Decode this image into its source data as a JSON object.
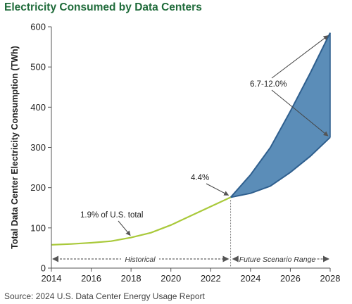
{
  "title": "Electricity Consumed by Data Centers",
  "source": "Source: 2024 U.S. Data Center Energy Usage Report",
  "colors": {
    "title": "#1f6b3a",
    "historical_line": "#a9c93a",
    "scenario_fill": "#5b8db8",
    "scenario_line": "#2f5f8e",
    "axis": "#555555",
    "annotation": "#444444"
  },
  "chart_data": {
    "type": "area",
    "ylabel": "Total Data Center Electricity Consumption (TWh)",
    "xlim": [
      2014,
      2028
    ],
    "ylim": [
      0,
      600
    ],
    "x_ticks": [
      "2014",
      "2016",
      "2018",
      "2020",
      "2022",
      "2024",
      "2026",
      "2028"
    ],
    "y_ticks": [
      "0",
      "100",
      "200",
      "300",
      "400",
      "500",
      "600"
    ],
    "grid": false,
    "historical": {
      "x": [
        2014,
        2015,
        2016,
        2017,
        2018,
        2019,
        2020,
        2021,
        2022,
        2023
      ],
      "y": [
        58,
        60,
        63,
        67,
        76,
        88,
        107,
        130,
        153,
        176
      ]
    },
    "scenario_upper": {
      "x": [
        2023,
        2024,
        2025,
        2026,
        2027,
        2028
      ],
      "y": [
        176,
        232,
        300,
        390,
        485,
        585
      ]
    },
    "scenario_lower": {
      "x": [
        2023,
        2024,
        2025,
        2026,
        2027,
        2028
      ],
      "y": [
        176,
        186,
        204,
        238,
        278,
        325
      ]
    },
    "annotations": [
      {
        "text": "1.9% of U.S. total",
        "x": 2018,
        "y": 76
      },
      {
        "text": "4.4%",
        "x": 2023,
        "y": 176
      },
      {
        "text": "6.7-12.0%",
        "x": 2028,
        "y": 585,
        "y2": 325
      }
    ],
    "period_labels": [
      {
        "text": "Historical",
        "from": 2014,
        "to": 2023
      },
      {
        "text": "Future Scenario Range",
        "from": 2023,
        "to": 2028
      }
    ]
  }
}
